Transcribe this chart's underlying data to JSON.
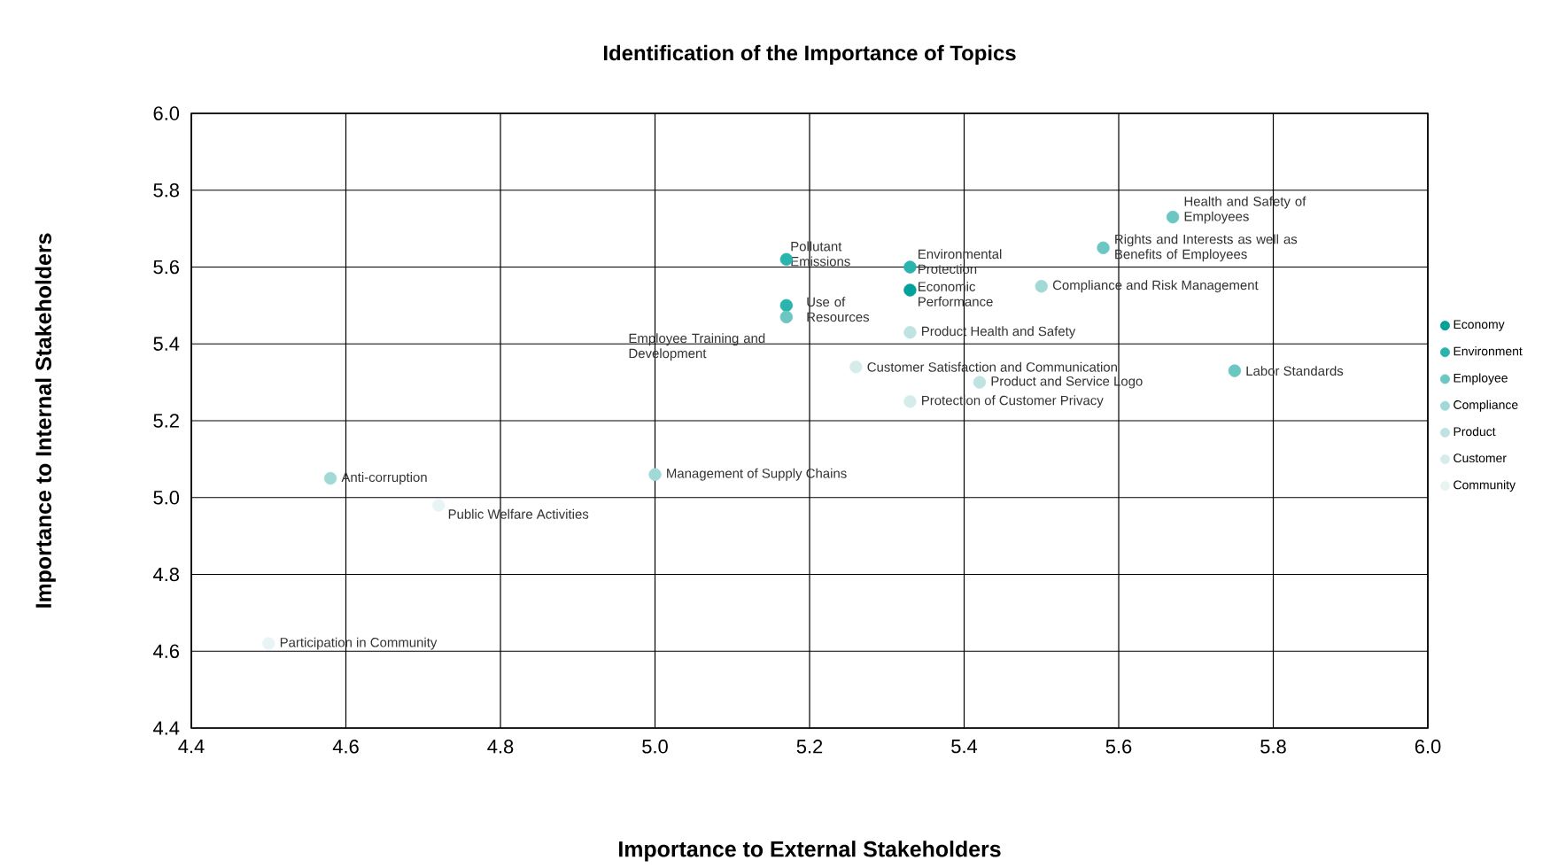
{
  "chart_data": {
    "type": "scatter",
    "title": "Identification of the Importance of Topics",
    "xlabel": "Importance to External Stakeholders",
    "ylabel": "Importance to Internal Stakeholders",
    "xlim": [
      4.4,
      6.0
    ],
    "ylim": [
      4.4,
      6.0
    ],
    "xticks": [
      4.4,
      4.6,
      4.8,
      {
        "value": 5,
        "label": "5.0"
      },
      5.2,
      5.4,
      5.6,
      5.8,
      {
        "value": 6,
        "label": "6.0"
      }
    ],
    "yticks": [
      4.4,
      4.6,
      4.8,
      {
        "value": 5,
        "label": "5.0"
      },
      5.2,
      5.4,
      5.6,
      5.8,
      {
        "value": 6,
        "label": "6.0"
      }
    ],
    "grid": true,
    "legend": "right",
    "marker": "circle",
    "series": [
      {
        "name": "Economy",
        "color": "#00a19a",
        "x": [
          5.33
        ],
        "values": [
          5.54
        ]
      },
      {
        "name": "Environment",
        "color": "#2bb3ae",
        "x": [
          5.17,
          5.33,
          5.17
        ],
        "values": [
          5.62,
          5.6,
          5.5
        ]
      },
      {
        "name": "Employee",
        "color": "#6cc6c2",
        "x": [
          5.67,
          5.58,
          5.75,
          5.17
        ],
        "values": [
          5.73,
          5.65,
          5.33,
          5.47
        ]
      },
      {
        "name": "Compliance",
        "color": "#a1d9d6",
        "x": [
          5.5,
          4.58,
          5.0
        ],
        "values": [
          5.55,
          5.05,
          5.06
        ]
      },
      {
        "name": "Product",
        "color": "#bfe3e1",
        "x": [
          5.33,
          5.42
        ],
        "values": [
          5.43,
          5.3
        ]
      },
      {
        "name": "Customer",
        "color": "#d6ecea",
        "x": [
          5.26,
          5.33
        ],
        "values": [
          5.34,
          5.25
        ]
      },
      {
        "name": "Community",
        "color": "#e8f4f3",
        "x": [
          4.72,
          4.5
        ],
        "values": [
          4.98,
          4.62
        ]
      }
    ],
    "annotations": [
      {
        "text": "Economic Performance",
        "x": 5.33,
        "y": 5.54
      },
      {
        "text": "Pollutant Emissions",
        "x": 5.17,
        "y": 5.62
      },
      {
        "text": "Environmental Protection",
        "x": 5.33,
        "y": 5.6
      },
      {
        "text": "Use of Resources",
        "x": 5.17,
        "y": 5.5
      },
      {
        "text": "Health and Safety of Employees",
        "x": 5.67,
        "y": 5.73
      },
      {
        "text": "Rights and Interests as well as Benefits of Employees",
        "x": 5.58,
        "y": 5.65
      },
      {
        "text": "Labor Standards",
        "x": 5.75,
        "y": 5.33
      },
      {
        "text": "Employee Training and Development",
        "x": 5.17,
        "y": 5.47
      },
      {
        "text": "Compliance and Risk Management",
        "x": 5.5,
        "y": 5.55
      },
      {
        "text": "Anti-corruption",
        "x": 4.58,
        "y": 5.05
      },
      {
        "text": "Management of Supply Chains",
        "x": 5.0,
        "y": 5.06
      },
      {
        "text": "Product Health and Safety",
        "x": 5.33,
        "y": 5.43
      },
      {
        "text": "Product and Service Logo",
        "x": 5.42,
        "y": 5.3
      },
      {
        "text": "Customer Satisfaction and Communication",
        "x": 5.26,
        "y": 5.34
      },
      {
        "text": "Protection of Customer Privacy",
        "x": 5.33,
        "y": 5.25
      },
      {
        "text": "Public Welfare Activities",
        "x": 4.72,
        "y": 4.98
      },
      {
        "text": "Participation in Community",
        "x": 4.5,
        "y": 4.62
      }
    ]
  }
}
